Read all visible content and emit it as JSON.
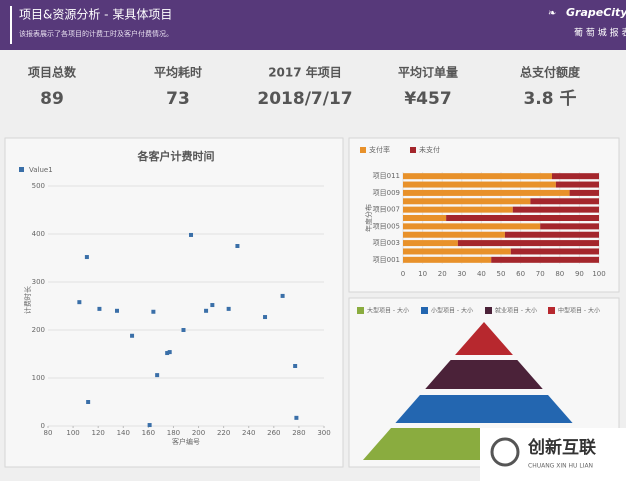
{
  "header": {
    "title": "项目&资源分析 - 某具体项目",
    "subtitle": "该报表展示了各项目的计费工时及客户付费情况。",
    "logo": "GrapeCity",
    "product": "葡 萄 城 报 表"
  },
  "kpis": [
    {
      "label": "项目总数",
      "value": "89"
    },
    {
      "label": "平均耗时",
      "value": "73"
    },
    {
      "label": "2017 年项目",
      "value": "2018/7/17"
    },
    {
      "label": "平均订单量",
      "value": "¥457"
    },
    {
      "label": "总支付额度",
      "value": "3.8 千"
    }
  ],
  "chart_data": [
    {
      "type": "scatter",
      "title": "各客户计费时间",
      "x_label": "客户编号",
      "y_label": "计费时长",
      "series": [
        {
          "name": "Value1",
          "color": "#3a6fa8",
          "x": [
            105,
            111,
            112,
            121,
            135,
            147,
            161,
            164,
            167,
            175,
            177,
            188,
            194,
            206,
            211,
            224,
            231,
            253,
            267,
            277,
            278
          ],
          "values": [
            258,
            352,
            50,
            244,
            240,
            188,
            2,
            238,
            106,
            152,
            154,
            200,
            398,
            240,
            252,
            244,
            375,
            227,
            271,
            125,
            17
          ]
        }
      ],
      "xlim": [
        80,
        300
      ],
      "xticks": [
        80,
        100,
        120,
        140,
        160,
        180,
        200,
        220,
        240,
        260,
        280,
        300
      ],
      "ylim": [
        0,
        500
      ],
      "yticks": [
        0,
        100,
        200,
        300,
        400,
        500
      ],
      "grid": true
    },
    {
      "type": "stacked-barh",
      "y_label": "年度分布",
      "categories": [
        "项目001",
        null,
        "项目003",
        null,
        "项目005",
        null,
        "项目007",
        null,
        "项目009",
        null,
        "项目011"
      ],
      "series": [
        {
          "name": "支付率",
          "color": "#e8912a",
          "values": [
            45,
            55,
            28,
            52,
            70,
            22,
            56,
            65,
            85,
            78,
            76
          ]
        },
        {
          "name": "未支付",
          "color": "#a4262c",
          "values": [
            55,
            45,
            72,
            48,
            30,
            78,
            44,
            35,
            15,
            22,
            24
          ]
        }
      ],
      "xlim": [
        0,
        100
      ],
      "xticks": [
        0,
        10,
        20,
        30,
        40,
        50,
        60,
        70,
        80,
        90,
        100
      ],
      "grid": true
    },
    {
      "type": "pyramid",
      "series": [
        {
          "name": "大型项目 - 大小",
          "color": "#8aac3f"
        },
        {
          "name": "小型项目 - 大小",
          "color": "#2366b0"
        },
        {
          "name": "就业项目 - 大小",
          "color": "#4b2239"
        },
        {
          "name": "中型项目 - 大小",
          "color": "#b7282e"
        }
      ]
    }
  ],
  "watermark": {
    "text": "创新互联",
    "sub": "CHUANG XIN HU LIAN"
  }
}
